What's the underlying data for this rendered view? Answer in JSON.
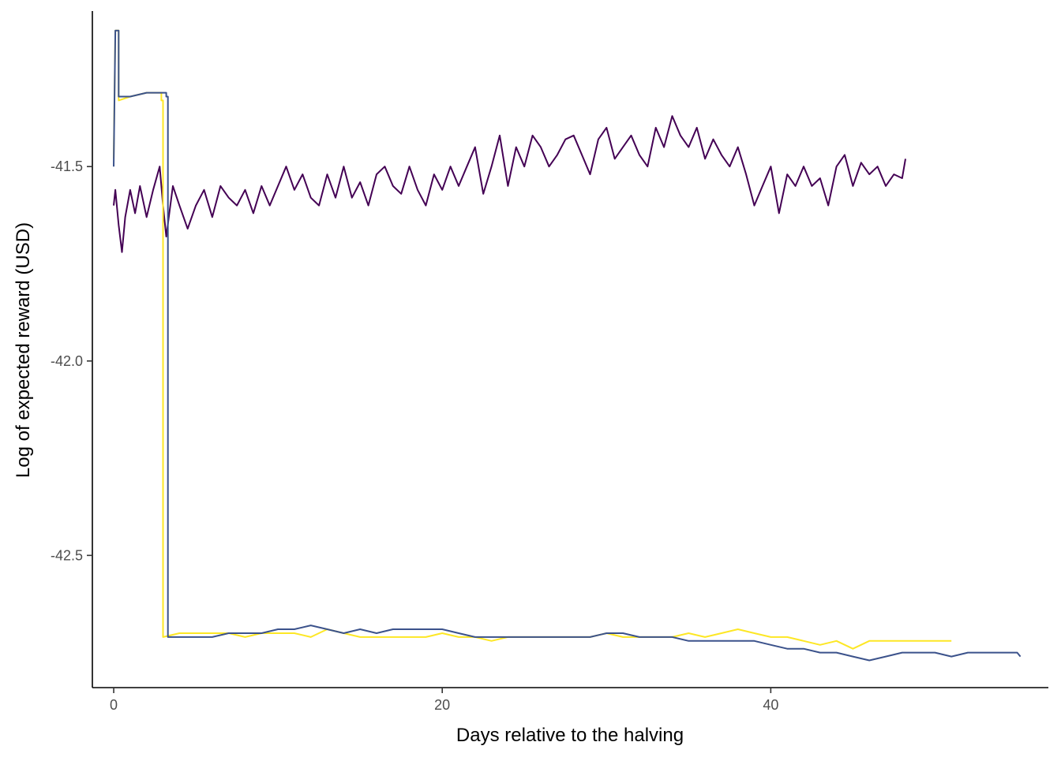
{
  "chart_data": {
    "type": "line",
    "title": "",
    "xlabel": "Days relative to the halving",
    "ylabel": "Log of expected reward (USD)",
    "xlim": [
      -1.3,
      56.9
    ],
    "ylim": [
      -42.84,
      -41.1
    ],
    "x_ticks": [
      0,
      20,
      40
    ],
    "x_tick_labels": [
      "0",
      "20",
      "40"
    ],
    "y_ticks": [
      -41.5,
      -42.0,
      -42.5
    ],
    "y_tick_labels": [
      "-41.5",
      "-42.0",
      "-42.5"
    ],
    "grid": false,
    "legend": "none",
    "series": [
      {
        "color": "#440154",
        "x": [
          0.0,
          0.1,
          0.3,
          0.5,
          0.7,
          1.0,
          1.3,
          1.6,
          2.0,
          2.4,
          2.8,
          3.0,
          3.2,
          3.6,
          4.0,
          4.5,
          5.0,
          5.5,
          6.0,
          6.5,
          7.0,
          7.5,
          8.0,
          8.5,
          9.0,
          9.5,
          10.0,
          10.5,
          11.0,
          11.5,
          12.0,
          12.5,
          13.0,
          13.5,
          14.0,
          14.5,
          15.0,
          15.5,
          16.0,
          16.5,
          17.0,
          17.5,
          18.0,
          18.5,
          19.0,
          19.5,
          20.0,
          20.5,
          21.0,
          21.5,
          22.0,
          22.5,
          23.0,
          23.5,
          24.0,
          24.5,
          25.0,
          25.5,
          26.0,
          26.5,
          27.0,
          27.5,
          28.0,
          28.5,
          29.0,
          29.5,
          30.0,
          30.5,
          31.0,
          31.5,
          32.0,
          32.5,
          33.0,
          33.5,
          34.0,
          34.5,
          35.0,
          35.5,
          36.0,
          36.5,
          37.0,
          37.5,
          38.0,
          38.5,
          39.0,
          39.5,
          40.0,
          40.5,
          41.0,
          41.5,
          42.0,
          42.5,
          43.0,
          43.5,
          44.0,
          44.5,
          45.0,
          45.5,
          46.0,
          46.5,
          47.0,
          47.5,
          48.0,
          48.2
        ],
        "values": [
          -41.6,
          -41.56,
          -41.65,
          -41.72,
          -41.63,
          -41.56,
          -41.62,
          -41.55,
          -41.63,
          -41.56,
          -41.5,
          -41.6,
          -41.68,
          -41.55,
          -41.6,
          -41.66,
          -41.6,
          -41.56,
          -41.63,
          -41.55,
          -41.58,
          -41.6,
          -41.56,
          -41.62,
          -41.55,
          -41.6,
          -41.55,
          -41.5,
          -41.56,
          -41.52,
          -41.58,
          -41.6,
          -41.52,
          -41.58,
          -41.5,
          -41.58,
          -41.54,
          -41.6,
          -41.52,
          -41.5,
          -41.55,
          -41.57,
          -41.5,
          -41.56,
          -41.6,
          -41.52,
          -41.56,
          -41.5,
          -41.55,
          -41.5,
          -41.45,
          -41.57,
          -41.5,
          -41.42,
          -41.55,
          -41.45,
          -41.5,
          -41.42,
          -41.45,
          -41.5,
          -41.47,
          -41.43,
          -41.42,
          -41.47,
          -41.52,
          -41.43,
          -41.4,
          -41.48,
          -41.45,
          -41.42,
          -41.47,
          -41.5,
          -41.4,
          -41.45,
          -41.37,
          -41.42,
          -41.45,
          -41.4,
          -41.48,
          -41.43,
          -41.47,
          -41.5,
          -41.45,
          -41.52,
          -41.6,
          -41.55,
          -41.5,
          -41.62,
          -41.52,
          -41.55,
          -41.5,
          -41.55,
          -41.53,
          -41.6,
          -41.5,
          -41.47,
          -41.55,
          -41.49,
          -41.52,
          -41.5,
          -41.55,
          -41.52,
          -41.53,
          -41.48
        ]
      },
      {
        "color": "#FDE725",
        "x": [
          0.0,
          0.1,
          0.2,
          0.3,
          0.3,
          1.0,
          2.0,
          2.9,
          2.9,
          3.0,
          3.0,
          4.0,
          5.0,
          6.0,
          7.0,
          8.0,
          9.0,
          10.0,
          11.0,
          12.0,
          13.0,
          14.0,
          15.0,
          16.0,
          17.0,
          18.0,
          19.0,
          20.0,
          21.0,
          22.0,
          23.0,
          24.0,
          25.0,
          26.0,
          27.0,
          28.0,
          29.0,
          30.0,
          31.0,
          32.0,
          33.0,
          34.0,
          35.0,
          36.0,
          37.0,
          38.0,
          39.0,
          40.0,
          41.0,
          42.0,
          43.0,
          44.0,
          45.0,
          46.0,
          47.0,
          48.0,
          49.0,
          50.0,
          51.0
        ],
        "values": [
          -41.48,
          -41.15,
          -41.15,
          -41.15,
          -41.33,
          -41.32,
          -41.31,
          -41.31,
          -41.33,
          -41.33,
          -42.71,
          -42.7,
          -42.7,
          -42.7,
          -42.7,
          -42.71,
          -42.7,
          -42.7,
          -42.7,
          -42.71,
          -42.69,
          -42.7,
          -42.71,
          -42.71,
          -42.71,
          -42.71,
          -42.71,
          -42.7,
          -42.71,
          -42.71,
          -42.72,
          -42.71,
          -42.71,
          -42.71,
          -42.71,
          -42.71,
          -42.71,
          -42.7,
          -42.71,
          -42.71,
          -42.71,
          -42.71,
          -42.7,
          -42.71,
          -42.7,
          -42.69,
          -42.7,
          -42.71,
          -42.71,
          -42.72,
          -42.73,
          -42.72,
          -42.74,
          -42.72,
          -42.72,
          -42.72,
          -42.72,
          -42.72,
          -42.72
        ]
      },
      {
        "color": "#3B528B",
        "x": [
          0.0,
          0.1,
          0.2,
          0.3,
          0.3,
          1.0,
          2.0,
          3.2,
          3.2,
          3.3,
          3.3,
          4.0,
          5.0,
          6.0,
          7.0,
          8.0,
          9.0,
          10.0,
          11.0,
          12.0,
          13.0,
          14.0,
          15.0,
          16.0,
          17.0,
          18.0,
          19.0,
          20.0,
          21.0,
          22.0,
          23.0,
          24.0,
          25.0,
          26.0,
          27.0,
          28.0,
          29.0,
          30.0,
          31.0,
          32.0,
          33.0,
          34.0,
          35.0,
          36.0,
          37.0,
          38.0,
          39.0,
          40.0,
          41.0,
          42.0,
          43.0,
          44.0,
          45.0,
          46.0,
          47.0,
          48.0,
          49.0,
          50.0,
          51.0,
          52.0,
          53.0,
          54.0,
          55.0,
          55.2
        ],
        "values": [
          -41.5,
          -41.15,
          -41.15,
          -41.15,
          -41.32,
          -41.32,
          -41.31,
          -41.31,
          -41.32,
          -41.32,
          -42.71,
          -42.71,
          -42.71,
          -42.71,
          -42.7,
          -42.7,
          -42.7,
          -42.69,
          -42.69,
          -42.68,
          -42.69,
          -42.7,
          -42.69,
          -42.7,
          -42.69,
          -42.69,
          -42.69,
          -42.69,
          -42.7,
          -42.71,
          -42.71,
          -42.71,
          -42.71,
          -42.71,
          -42.71,
          -42.71,
          -42.71,
          -42.7,
          -42.7,
          -42.71,
          -42.71,
          -42.71,
          -42.72,
          -42.72,
          -42.72,
          -42.72,
          -42.72,
          -42.73,
          -42.74,
          -42.74,
          -42.75,
          -42.75,
          -42.76,
          -42.77,
          -42.76,
          -42.75,
          -42.75,
          -42.75,
          -42.76,
          -42.75,
          -42.75,
          -42.75,
          -42.75,
          -42.76
        ]
      }
    ]
  }
}
